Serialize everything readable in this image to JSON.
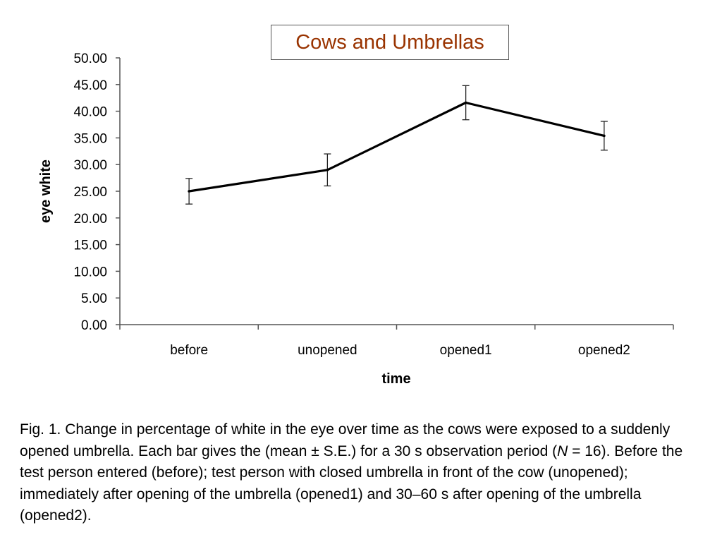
{
  "chart_data": {
    "type": "line",
    "title": "Cows and Umbrellas",
    "xlabel": "time",
    "ylabel": "eye white",
    "categories": [
      "before",
      "unopened",
      "opened1",
      "opened2"
    ],
    "series": [
      {
        "values": [
          25.0,
          29.0,
          41.6,
          35.4
        ],
        "errors": [
          2.4,
          3.0,
          3.2,
          2.7
        ]
      }
    ],
    "yticks": [
      "0.00",
      "5.00",
      "10.00",
      "15.00",
      "20.00",
      "25.00",
      "30.00",
      "35.00",
      "40.00",
      "45.00",
      "50.00"
    ],
    "ylim": [
      0,
      50
    ],
    "grid": false,
    "legend": "none",
    "line_color": "#000000",
    "title_color": "#993300"
  },
  "caption": {
    "prefix": "Fig. 1. Change in percentage of white in the eye over time as the cows were exposed to a suddenly opened umbrella. Each bar gives the (mean ± S.E.) for a 30 s observation period (",
    "n_symbol": "N",
    "suffix": " = 16). Before the test person entered (before); test person with closed umbrella in front of the cow (unopened); immediately after opening of the umbrella (opened1) and 30–60 s after opening of the umbrella (opened2)."
  }
}
